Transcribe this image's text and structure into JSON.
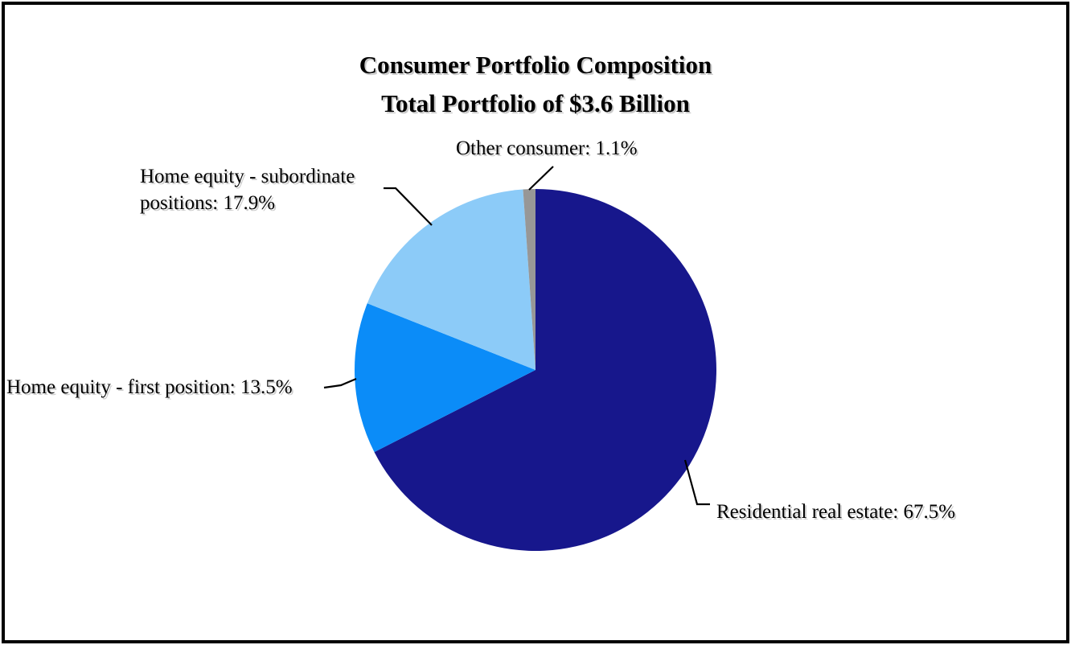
{
  "chart_data": {
    "type": "pie",
    "title": "Consumer Portfolio Composition",
    "subtitle": "Total Portfolio of $3.6 Billion",
    "total_label": "$3.6 Billion",
    "start_angle_deg": 0,
    "direction": "clockwise",
    "categories": [
      "Residential real estate",
      "Home equity - first position",
      "Home equity - subordinate positions",
      "Other consumer"
    ],
    "values": [
      67.5,
      13.5,
      17.9,
      1.1
    ],
    "slices": [
      {
        "id": "residential-real-estate",
        "label": "Residential real estate",
        "value_pct": 67.5,
        "color": "#17178C",
        "display_label": "Residential real estate: 67.5%"
      },
      {
        "id": "home-equity-first-position",
        "label": "Home equity - first position",
        "value_pct": 13.5,
        "color": "#0B8CF8",
        "display_label": "Home equity - first position: 13.5%"
      },
      {
        "id": "home-equity-subordinate-positions",
        "label": "Home equity - subordinate positions",
        "value_pct": 17.9,
        "color": "#8CCBF8",
        "display_label": "Home equity - subordinate positions: 17.9%"
      },
      {
        "id": "other-consumer",
        "label": "Other consumer",
        "value_pct": 1.1,
        "color": "#979797",
        "display_label": "Other consumer: 1.1%"
      }
    ],
    "colors": {
      "leader_line": "#000000",
      "frame_border": "#000000",
      "background": "#ffffff"
    },
    "legend_position": "callout-labels",
    "grid": false
  }
}
